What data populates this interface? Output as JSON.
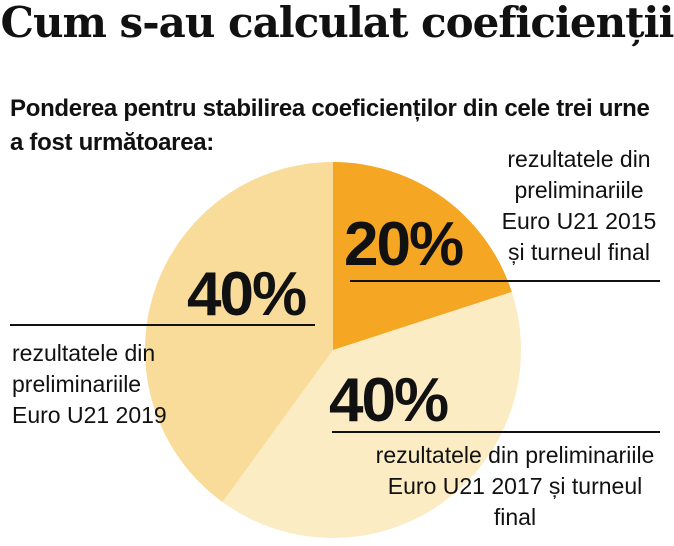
{
  "title": "Cum s-au calculat coeficienții",
  "subtitle": "Ponderea pentru stabilirea coeficienților din cele trei urne a fost următoarea:",
  "chart_data": {
    "type": "pie",
    "slices": [
      {
        "value": 20,
        "label": "20%",
        "text": "rezultatele din preliminariile Euro U21 2015 și turneul final",
        "color": "#f5a623"
      },
      {
        "value": 40,
        "label": "40%",
        "text": "rezultatele din preliminariile Euro U21 2017 și turneul final",
        "color": "#fcecc4"
      },
      {
        "value": 40,
        "label": "40%",
        "text": "rezultatele din preliminariile Euro U21 2019",
        "color": "#f9dc9a"
      }
    ]
  }
}
